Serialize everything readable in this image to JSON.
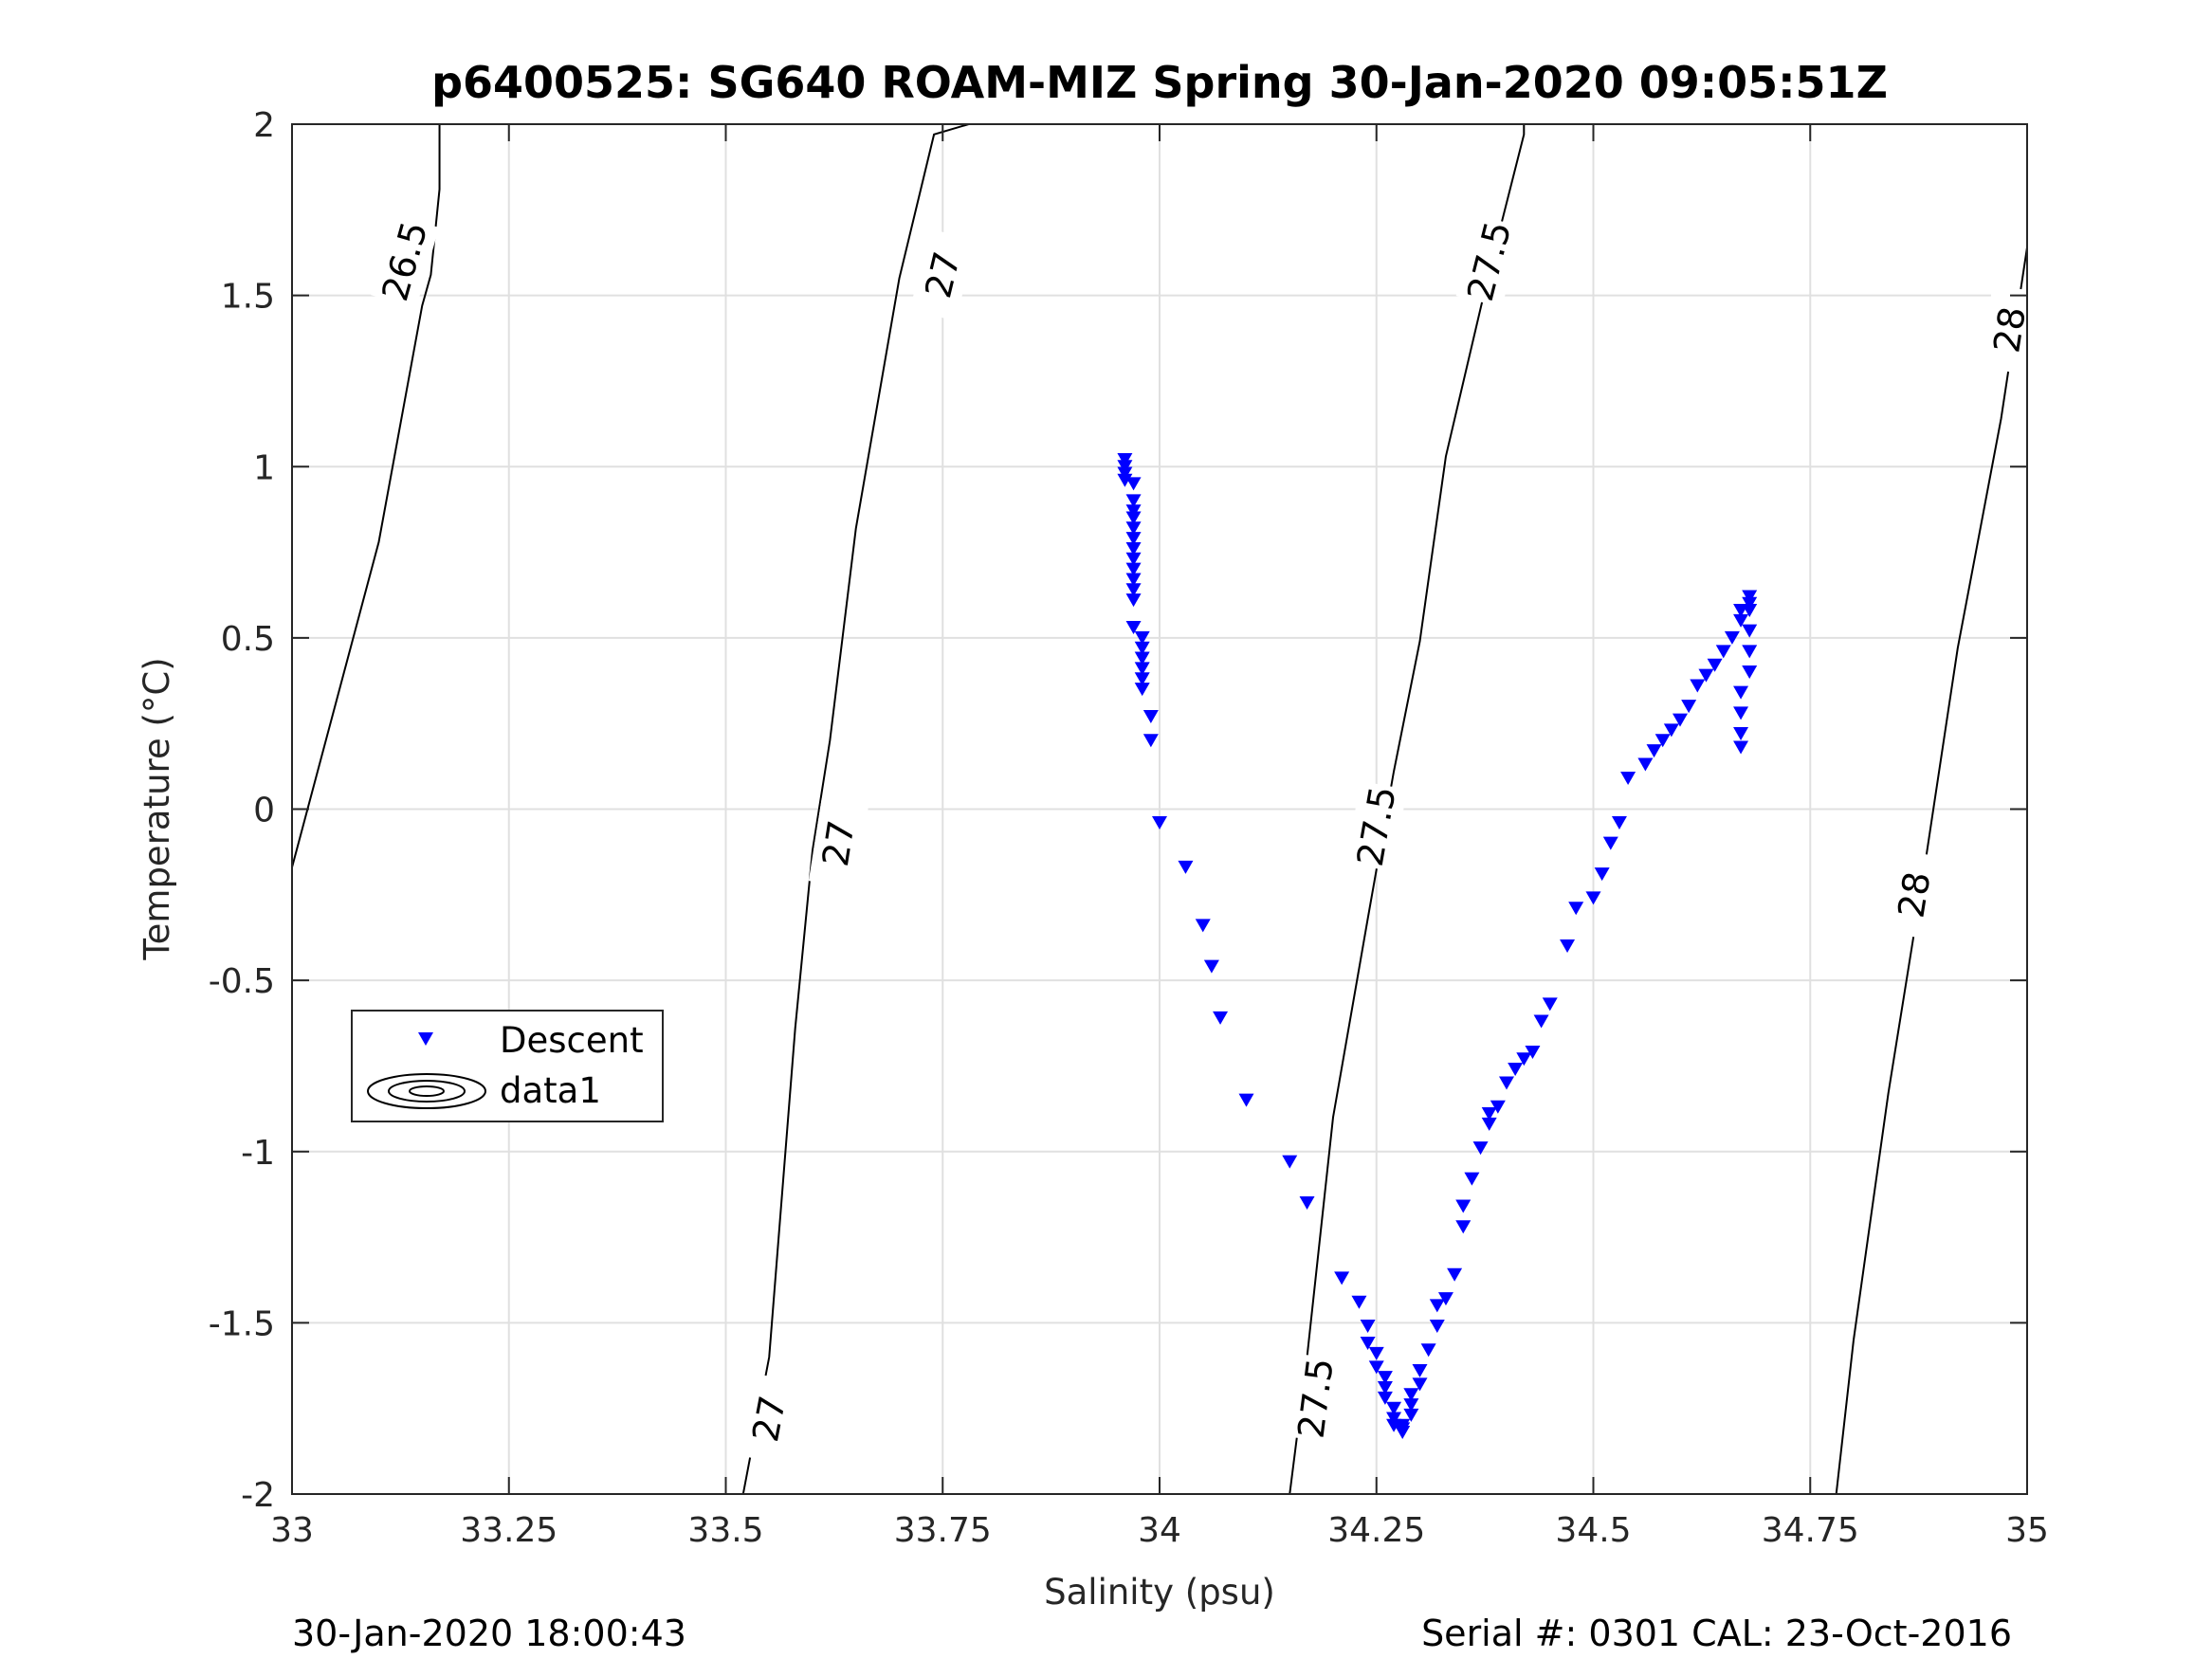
{
  "chart_data": {
    "type": "scatter",
    "title": "p6400525: SG640 ROAM-MIZ Spring 30-Jan-2020 09:05:51Z",
    "xlabel": "Salinity (psu)",
    "ylabel": "Temperature (°C)",
    "xlim": [
      33,
      35
    ],
    "ylim": [
      -2,
      2
    ],
    "x_ticks": [
      33,
      33.25,
      33.5,
      33.75,
      34,
      34.25,
      34.5,
      34.75,
      35
    ],
    "x_tick_labels": [
      "33",
      "33.25",
      "33.5",
      "33.75",
      "34",
      "34.25",
      "34.5",
      "34.75",
      "35"
    ],
    "y_ticks": [
      -2,
      -1.5,
      -1,
      -0.5,
      0,
      0.5,
      1,
      1.5,
      2
    ],
    "y_tick_labels": [
      "-2",
      "-1.5",
      "-1",
      "-0.5",
      "0",
      "0.5",
      "1",
      "1.5",
      "2"
    ],
    "grid": true,
    "legend_position": "left-middle",
    "legend": [
      "Descent",
      "data1"
    ],
    "colors": {
      "series": "#0000ff",
      "contour": "#000000",
      "grid": "#e0e0e0",
      "axis": "#262626"
    },
    "contours": [
      {
        "level": "26.5",
        "points": [
          [
            33.0,
            -0.17
          ],
          [
            33.04,
            0.21
          ],
          [
            33.1,
            0.78
          ],
          [
            33.15,
            1.47
          ],
          [
            33.16,
            1.56
          ],
          [
            33.17,
            1.81
          ],
          [
            33.17,
            2.0
          ]
        ],
        "labels": [
          {
            "x": 33.13,
            "y": 1.6
          }
        ]
      },
      {
        "level": "27",
        "points": [
          [
            33.52,
            -2.0
          ],
          [
            33.55,
            -1.6
          ],
          [
            33.58,
            -0.64
          ],
          [
            33.6,
            -0.12
          ],
          [
            33.62,
            0.2
          ],
          [
            33.65,
            0.82
          ],
          [
            33.7,
            1.55
          ],
          [
            33.74,
            1.97
          ],
          [
            33.78,
            2.0
          ]
        ],
        "labels": [
          {
            "x": 33.55,
            "y": -1.78
          },
          {
            "x": 33.63,
            "y": -0.1
          },
          {
            "x": 33.75,
            "y": 1.56
          }
        ]
      },
      {
        "level": "27.5",
        "points": [
          [
            34.15,
            -2.0
          ],
          [
            34.17,
            -1.6
          ],
          [
            34.2,
            -0.9
          ],
          [
            34.24,
            -0.32
          ],
          [
            34.27,
            0.11
          ],
          [
            34.3,
            0.49
          ],
          [
            34.33,
            1.03
          ],
          [
            34.38,
            1.57
          ],
          [
            34.42,
            1.97
          ],
          [
            34.42,
            2.0
          ]
        ],
        "labels": [
          {
            "x": 34.18,
            "y": -1.72
          },
          {
            "x": 34.25,
            "y": -0.05
          },
          {
            "x": 34.38,
            "y": 1.6
          }
        ]
      },
      {
        "level": "28",
        "points": [
          [
            34.78,
            -2.0
          ],
          [
            34.8,
            -1.55
          ],
          [
            34.84,
            -0.83
          ],
          [
            34.88,
            -0.2
          ],
          [
            34.92,
            0.47
          ],
          [
            34.97,
            1.14
          ],
          [
            35.0,
            1.64
          ]
        ],
        "labels": [
          {
            "x": 34.87,
            "y": -0.25
          },
          {
            "x": 34.98,
            "y": 1.4
          }
        ]
      }
    ],
    "series": [
      {
        "name": "Descent",
        "marker": "triangle-down",
        "points": [
          [
            33.96,
            1.02
          ],
          [
            33.96,
            1.0
          ],
          [
            33.96,
            0.98
          ],
          [
            33.96,
            0.96
          ],
          [
            33.97,
            0.95
          ],
          [
            33.97,
            0.9
          ],
          [
            33.97,
            0.87
          ],
          [
            33.97,
            0.85
          ],
          [
            33.97,
            0.82
          ],
          [
            33.97,
            0.79
          ],
          [
            33.97,
            0.76
          ],
          [
            33.97,
            0.73
          ],
          [
            33.97,
            0.7
          ],
          [
            33.97,
            0.67
          ],
          [
            33.97,
            0.64
          ],
          [
            33.97,
            0.61
          ],
          [
            33.97,
            0.53
          ],
          [
            33.98,
            0.5
          ],
          [
            33.98,
            0.47
          ],
          [
            33.98,
            0.44
          ],
          [
            33.98,
            0.41
          ],
          [
            33.98,
            0.38
          ],
          [
            33.98,
            0.35
          ],
          [
            33.99,
            0.27
          ],
          [
            33.99,
            0.2
          ],
          [
            34.0,
            -0.04
          ],
          [
            34.03,
            -0.17
          ],
          [
            34.05,
            -0.34
          ],
          [
            34.06,
            -0.46
          ],
          [
            34.07,
            -0.61
          ],
          [
            34.1,
            -0.85
          ],
          [
            34.15,
            -1.03
          ],
          [
            34.17,
            -1.15
          ],
          [
            34.21,
            -1.37
          ],
          [
            34.23,
            -1.44
          ],
          [
            34.24,
            -1.51
          ],
          [
            34.24,
            -1.56
          ],
          [
            34.25,
            -1.59
          ],
          [
            34.25,
            -1.63
          ],
          [
            34.26,
            -1.66
          ],
          [
            34.26,
            -1.69
          ],
          [
            34.26,
            -1.72
          ],
          [
            34.27,
            -1.75
          ],
          [
            34.27,
            -1.78
          ],
          [
            34.27,
            -1.8
          ],
          [
            34.28,
            -1.81
          ],
          [
            34.28,
            -1.82
          ],
          [
            34.28,
            -1.8
          ],
          [
            34.29,
            -1.77
          ],
          [
            34.29,
            -1.74
          ],
          [
            34.29,
            -1.71
          ],
          [
            34.3,
            -1.68
          ],
          [
            34.3,
            -1.64
          ],
          [
            34.31,
            -1.58
          ],
          [
            34.32,
            -1.51
          ],
          [
            34.32,
            -1.45
          ],
          [
            34.33,
            -1.43
          ],
          [
            34.34,
            -1.36
          ],
          [
            34.35,
            -1.22
          ],
          [
            34.35,
            -1.16
          ],
          [
            34.36,
            -1.08
          ],
          [
            34.37,
            -0.99
          ],
          [
            34.38,
            -0.92
          ],
          [
            34.38,
            -0.89
          ],
          [
            34.39,
            -0.87
          ],
          [
            34.4,
            -0.8
          ],
          [
            34.41,
            -0.76
          ],
          [
            34.42,
            -0.73
          ],
          [
            34.43,
            -0.71
          ],
          [
            34.44,
            -0.62
          ],
          [
            34.45,
            -0.57
          ],
          [
            34.47,
            -0.4
          ],
          [
            34.48,
            -0.29
          ],
          [
            34.5,
            -0.26
          ],
          [
            34.51,
            -0.19
          ],
          [
            34.52,
            -0.1
          ],
          [
            34.53,
            -0.04
          ],
          [
            34.54,
            0.09
          ],
          [
            34.56,
            0.13
          ],
          [
            34.57,
            0.17
          ],
          [
            34.58,
            0.2
          ],
          [
            34.59,
            0.23
          ],
          [
            34.6,
            0.26
          ],
          [
            34.61,
            0.3
          ],
          [
            34.62,
            0.36
          ],
          [
            34.63,
            0.39
          ],
          [
            34.64,
            0.42
          ],
          [
            34.65,
            0.46
          ],
          [
            34.66,
            0.5
          ],
          [
            34.67,
            0.55
          ],
          [
            34.67,
            0.58
          ],
          [
            34.68,
            0.6
          ],
          [
            34.68,
            0.62
          ],
          [
            34.68,
            0.58
          ],
          [
            34.68,
            0.52
          ],
          [
            34.68,
            0.46
          ],
          [
            34.68,
            0.4
          ],
          [
            34.67,
            0.34
          ],
          [
            34.67,
            0.28
          ],
          [
            34.67,
            0.22
          ],
          [
            34.67,
            0.18
          ]
        ]
      }
    ]
  },
  "footer": {
    "left": "30-Jan-2020 18:00:43",
    "right": "Serial #: 0301  CAL: 23-Oct-2016"
  }
}
